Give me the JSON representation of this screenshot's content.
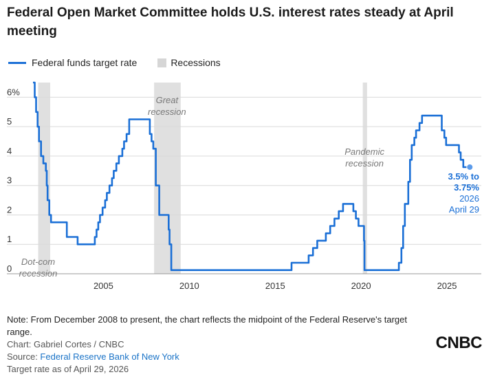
{
  "header": {
    "title": "Federal Open Market Committee holds U.S. interest rates steady at April meeting"
  },
  "legend": {
    "series_label": "Federal funds target rate",
    "recession_label": "Recessions"
  },
  "colors": {
    "line": "#1a6fd6",
    "recession": "#d6d6d6",
    "grid": "#d9d9d9",
    "annotation": "#1a6fd6"
  },
  "chart_data": {
    "type": "line",
    "title": "Federal Open Market Committee holds U.S. interest rates steady at April meeting",
    "xlabel": "",
    "ylabel": "",
    "xlim": [
      2000.5,
      2027.0
    ],
    "ylim": [
      0,
      6.5
    ],
    "y_ticks": [
      0,
      1,
      2,
      3,
      4,
      5,
      6
    ],
    "y_tick_labels": [
      "0",
      "1",
      "2",
      "3",
      "4",
      "5",
      "6%"
    ],
    "x_ticks": [
      2005,
      2010,
      2015,
      2020,
      2025
    ],
    "x_tick_labels": [
      "2005",
      "2010",
      "2015",
      "2020",
      "2025"
    ],
    "series": [
      {
        "name": "Federal funds target rate",
        "points": [
          [
            2000.9,
            6.5
          ],
          [
            2001.0,
            6.0
          ],
          [
            2001.08,
            5.5
          ],
          [
            2001.17,
            5.0
          ],
          [
            2001.25,
            4.5
          ],
          [
            2001.37,
            4.0
          ],
          [
            2001.5,
            3.75
          ],
          [
            2001.65,
            3.5
          ],
          [
            2001.7,
            3.0
          ],
          [
            2001.75,
            2.5
          ],
          [
            2001.85,
            2.0
          ],
          [
            2001.95,
            1.75
          ],
          [
            2002.87,
            1.25
          ],
          [
            2003.5,
            1.0
          ],
          [
            2004.5,
            1.25
          ],
          [
            2004.6,
            1.5
          ],
          [
            2004.7,
            1.75
          ],
          [
            2004.8,
            2.0
          ],
          [
            2004.95,
            2.25
          ],
          [
            2005.1,
            2.5
          ],
          [
            2005.2,
            2.75
          ],
          [
            2005.35,
            3.0
          ],
          [
            2005.5,
            3.25
          ],
          [
            2005.6,
            3.5
          ],
          [
            2005.75,
            3.75
          ],
          [
            2005.9,
            4.0
          ],
          [
            2006.1,
            4.25
          ],
          [
            2006.2,
            4.5
          ],
          [
            2006.35,
            4.75
          ],
          [
            2006.5,
            5.25
          ],
          [
            2007.7,
            4.75
          ],
          [
            2007.8,
            4.5
          ],
          [
            2007.9,
            4.25
          ],
          [
            2008.05,
            3.0
          ],
          [
            2008.1,
            3.0
          ],
          [
            2008.25,
            2.0
          ],
          [
            2008.8,
            1.5
          ],
          [
            2008.85,
            1.0
          ],
          [
            2008.95,
            0.125
          ],
          [
            2015.95,
            0.375
          ],
          [
            2016.95,
            0.625
          ],
          [
            2017.2,
            0.875
          ],
          [
            2017.45,
            1.125
          ],
          [
            2017.95,
            1.375
          ],
          [
            2018.2,
            1.625
          ],
          [
            2018.45,
            1.875
          ],
          [
            2018.7,
            2.125
          ],
          [
            2018.95,
            2.375
          ],
          [
            2019.55,
            2.125
          ],
          [
            2019.7,
            1.875
          ],
          [
            2019.85,
            1.625
          ],
          [
            2020.17,
            1.125
          ],
          [
            2020.2,
            0.125
          ],
          [
            2022.2,
            0.375
          ],
          [
            2022.35,
            0.875
          ],
          [
            2022.45,
            1.625
          ],
          [
            2022.55,
            2.375
          ],
          [
            2022.75,
            3.125
          ],
          [
            2022.85,
            3.875
          ],
          [
            2022.95,
            4.375
          ],
          [
            2023.1,
            4.625
          ],
          [
            2023.2,
            4.875
          ],
          [
            2023.4,
            5.125
          ],
          [
            2023.55,
            5.375
          ],
          [
            2024.7,
            4.875
          ],
          [
            2024.85,
            4.625
          ],
          [
            2024.95,
            4.375
          ],
          [
            2025.7,
            4.125
          ],
          [
            2025.8,
            3.875
          ],
          [
            2025.95,
            3.625
          ],
          [
            2026.33,
            3.625
          ]
        ]
      }
    ],
    "recessions": [
      {
        "start": 2001.2,
        "end": 2001.9,
        "label": "Dot-com\nrecession",
        "label_x": 2001.2,
        "label_y": 0.3
      },
      {
        "start": 2007.95,
        "end": 2009.5,
        "label": "Great\nrecession",
        "label_x": 2008.7,
        "label_y": 5.8
      },
      {
        "start": 2020.1,
        "end": 2020.35,
        "label": "Pandemic\nrecession",
        "label_x": 2020.2,
        "label_y": 4.05
      }
    ],
    "annotations": [
      {
        "text": "3.5% to\n3.75%",
        "bold": true
      },
      {
        "text": "2026\nApril 29",
        "bold": false
      }
    ]
  },
  "footer": {
    "note": "Note: From December 2008 to present, the chart reflects the midpoint of the Federal Reserve's target range.",
    "chart_credit": "Chart: Gabriel Cortes / CNBC",
    "source_prefix": "Source: ",
    "source_link": "Federal Reserve Bank of New York",
    "as_of": "Target rate as of April 29, 2026",
    "logo_text": "CNBC"
  }
}
